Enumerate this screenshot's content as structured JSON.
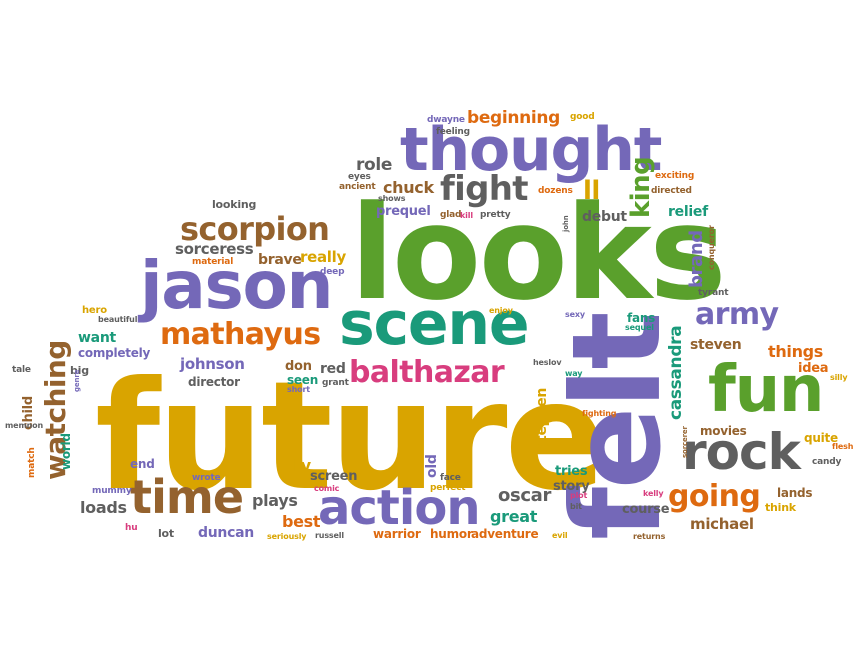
{
  "palette": {
    "gold": "#d9a400",
    "green": "#5aa02c",
    "purple": "#7468b8",
    "teal": "#1a9a7a",
    "orange": "#de6a10",
    "brown": "#94622e",
    "gray": "#5f5f5f",
    "pink": "#d83d7e"
  },
  "words": [
    {
      "text": "future",
      "color": "gold"
    },
    {
      "text": "looks",
      "color": "green"
    },
    {
      "text": "felt",
      "color": "purple"
    },
    {
      "text": "thought",
      "color": "purple"
    },
    {
      "text": "jason",
      "color": "purple"
    },
    {
      "text": "scene",
      "color": "teal"
    },
    {
      "text": "fun",
      "color": "green"
    },
    {
      "text": "rock",
      "color": "gray"
    },
    {
      "text": "action",
      "color": "purple"
    },
    {
      "text": "time",
      "color": "brown"
    },
    {
      "text": "scorpion",
      "color": "brown"
    },
    {
      "text": "mathayus",
      "color": "orange"
    },
    {
      "text": "balthazar",
      "color": "pink"
    },
    {
      "text": "fight",
      "color": "gray"
    },
    {
      "text": "watching",
      "color": "brown"
    },
    {
      "text": "army",
      "color": "purple"
    },
    {
      "text": "going",
      "color": "orange"
    },
    {
      "text": "king",
      "color": "green"
    },
    {
      "text": "beginning",
      "color": "orange"
    },
    {
      "text": "ll",
      "color": "gold"
    },
    {
      "text": "brand",
      "color": "purple"
    },
    {
      "text": "cassandra",
      "color": "teal"
    },
    {
      "text": "chuck",
      "color": "brown"
    },
    {
      "text": "role",
      "color": "gray"
    },
    {
      "text": "sorceress",
      "color": "gray"
    },
    {
      "text": "brave",
      "color": "brown"
    },
    {
      "text": "really",
      "color": "gold"
    },
    {
      "text": "johnson",
      "color": "purple"
    },
    {
      "text": "director",
      "color": "gray"
    },
    {
      "text": "completely",
      "color": "purple"
    },
    {
      "text": "want",
      "color": "teal"
    },
    {
      "text": "things",
      "color": "orange"
    },
    {
      "text": "steven",
      "color": "brown"
    },
    {
      "text": "idea",
      "color": "orange"
    },
    {
      "text": "oscar",
      "color": "gray"
    },
    {
      "text": "great",
      "color": "teal"
    },
    {
      "text": "michael",
      "color": "brown"
    },
    {
      "text": "loads",
      "color": "gray"
    },
    {
      "text": "duncan",
      "color": "purple"
    },
    {
      "text": "best",
      "color": "orange"
    },
    {
      "text": "plays",
      "color": "gray"
    },
    {
      "text": "ally",
      "color": "gold"
    },
    {
      "text": "screen",
      "color": "gray"
    },
    {
      "text": "stephen",
      "color": "gold"
    },
    {
      "text": "movies",
      "color": "brown"
    },
    {
      "text": "relief",
      "color": "teal"
    },
    {
      "text": "prequel",
      "color": "purple"
    },
    {
      "text": "debut",
      "color": "gray"
    },
    {
      "text": "red",
      "color": "gray"
    },
    {
      "text": "don",
      "color": "brown"
    },
    {
      "text": "seen",
      "color": "teal"
    },
    {
      "text": "story",
      "color": "gray"
    },
    {
      "text": "tries",
      "color": "teal"
    },
    {
      "text": "course",
      "color": "gray"
    },
    {
      "text": "quite",
      "color": "gold"
    },
    {
      "text": "lands",
      "color": "brown"
    },
    {
      "text": "think",
      "color": "gold"
    },
    {
      "text": "world",
      "color": "teal"
    },
    {
      "text": "end",
      "color": "purple"
    },
    {
      "text": "old",
      "color": "purple"
    },
    {
      "text": "adventure",
      "color": "orange"
    },
    {
      "text": "warrior",
      "color": "orange"
    },
    {
      "text": "humor",
      "color": "orange"
    },
    {
      "text": "lot",
      "color": "gray"
    },
    {
      "text": "looking",
      "color": "gray"
    },
    {
      "text": "fans",
      "color": "teal"
    },
    {
      "text": "child",
      "color": "brown"
    },
    {
      "text": "dwayne",
      "color": "purple"
    },
    {
      "text": "feeling",
      "color": "gray"
    },
    {
      "text": "good",
      "color": "gold"
    },
    {
      "text": "eyes",
      "color": "gray"
    },
    {
      "text": "ancient",
      "color": "brown"
    },
    {
      "text": "shows",
      "color": "gray"
    },
    {
      "text": "glad",
      "color": "brown"
    },
    {
      "text": "kill",
      "color": "pink"
    },
    {
      "text": "pretty",
      "color": "gray"
    },
    {
      "text": "dozens",
      "color": "orange"
    },
    {
      "text": "exciting",
      "color": "orange"
    },
    {
      "text": "directed",
      "color": "brown"
    },
    {
      "text": "john",
      "color": "gray"
    },
    {
      "text": "material",
      "color": "orange"
    },
    {
      "text": "deep",
      "color": "purple"
    },
    {
      "text": "hero",
      "color": "gold"
    },
    {
      "text": "beautiful",
      "color": "gray"
    },
    {
      "text": "enjoy",
      "color": "gold"
    },
    {
      "text": "sexy",
      "color": "purple"
    },
    {
      "text": "sequel",
      "color": "teal"
    },
    {
      "text": "tyrant",
      "color": "gray"
    },
    {
      "text": "conqueror",
      "color": "brown"
    },
    {
      "text": "heslov",
      "color": "gray"
    },
    {
      "text": "way",
      "color": "teal"
    },
    {
      "text": "silly",
      "color": "gold"
    },
    {
      "text": "grant",
      "color": "gray"
    },
    {
      "text": "short",
      "color": "purple"
    },
    {
      "text": "fighting",
      "color": "orange"
    },
    {
      "text": "flesh",
      "color": "orange"
    },
    {
      "text": "big",
      "color": "gray"
    },
    {
      "text": "tale",
      "color": "gray"
    },
    {
      "text": "genre",
      "color": "purple"
    },
    {
      "text": "memnon",
      "color": "gray"
    },
    {
      "text": "match",
      "color": "orange"
    },
    {
      "text": "mummy",
      "color": "purple"
    },
    {
      "text": "wrote",
      "color": "purple"
    },
    {
      "text": "comic",
      "color": "pink"
    },
    {
      "text": "face",
      "color": "gray"
    },
    {
      "text": "perfect",
      "color": "gold"
    },
    {
      "text": "plot",
      "color": "pink"
    },
    {
      "text": "bit",
      "color": "gray"
    },
    {
      "text": "sorcerer",
      "color": "brown"
    },
    {
      "text": "kelly",
      "color": "pink"
    },
    {
      "text": "candy",
      "color": "gray"
    },
    {
      "text": "hu",
      "color": "pink"
    },
    {
      "text": "seriously",
      "color": "gold"
    },
    {
      "text": "russell",
      "color": "gray"
    },
    {
      "text": "evil",
      "color": "gold"
    },
    {
      "text": "returns",
      "color": "brown"
    }
  ]
}
